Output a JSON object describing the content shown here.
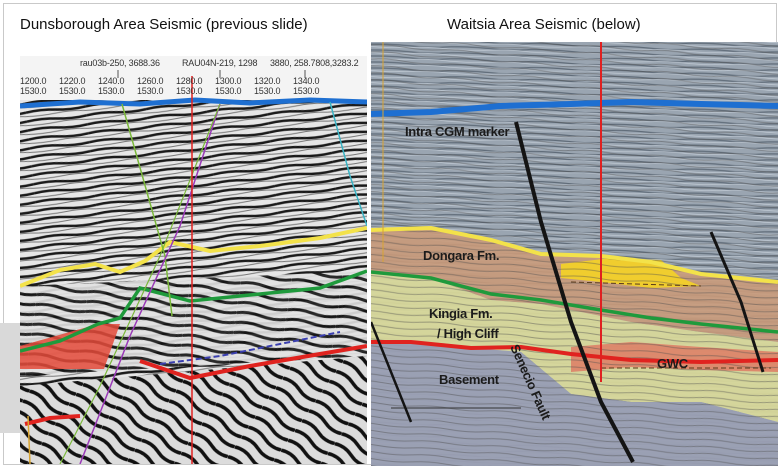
{
  "captions": {
    "left": "Dunsborough  Area Seismic (previous slide)",
    "right": "Waitsia Area Seismic (below)"
  },
  "left_panel": {
    "header_labels": {
      "line_a": "rau03b-250, 3688.36",
      "line_b": "RAU04N-219, 1298",
      "line_c": "3880,  258.7808,3283.2"
    },
    "cdp_values": [
      "1200.0",
      "1220.0",
      "1240.0",
      "1260.0",
      "1280.0",
      "1300.0",
      "1320.0",
      "1340.0"
    ],
    "time_values": [
      "1530.0",
      "1530.0",
      "1530.0",
      "1530.0",
      "1530.0",
      "1530.0",
      "1530.0",
      "1530.0"
    ]
  },
  "right_panel": {
    "labels": {
      "intra_cgm": "Intra CGM marker",
      "dongara": "Dongara Fm.",
      "kingia": "Kingia Fm.",
      "high_cliff": "/ High Cliff",
      "basement": "Basement",
      "senecio_fault": "Senecio Fault",
      "gwc": "GWC"
    }
  },
  "colors": {
    "blue_horizon": "#1e6fd1",
    "yellow_horizon": "#f3e24a",
    "green_horizon": "#1f9a3c",
    "red_horizon": "#e0231f",
    "fault": "#141414",
    "vertical_line": "#e02020",
    "gas_zone": "#f2d02a",
    "dongara_fill": "#c99a7a",
    "kingia_fill": "#d7d79a",
    "basement_fill": "#9a9fb3"
  }
}
